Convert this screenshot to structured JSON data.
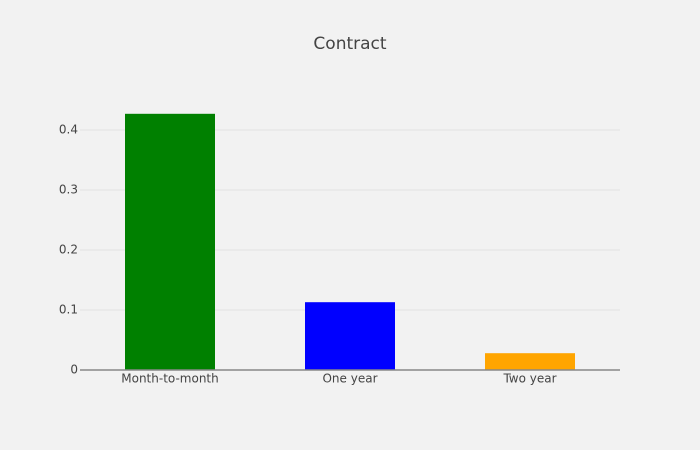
{
  "chart_data": {
    "type": "bar",
    "title": "Contract",
    "categories": [
      "Month-to-month",
      "One year",
      "Two year"
    ],
    "values": [
      0.427,
      0.113,
      0.028
    ],
    "colors": [
      "#008000",
      "#0000ff",
      "#ffa500"
    ],
    "ylim": [
      0,
      0.45
    ],
    "yticks": [
      0,
      0.1,
      0.2,
      0.3,
      0.4
    ],
    "grid": true
  }
}
